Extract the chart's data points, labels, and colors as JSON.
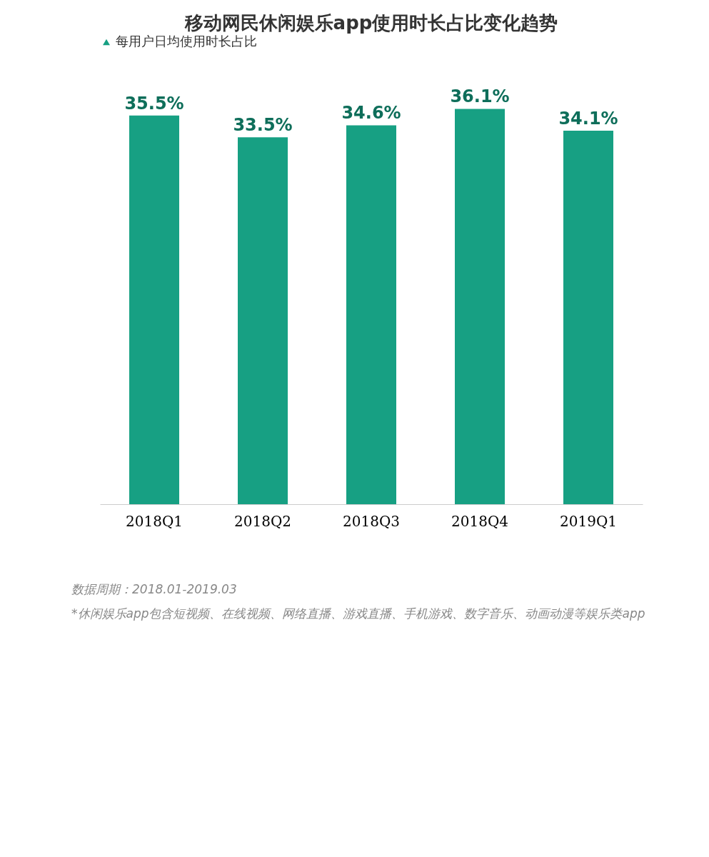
{
  "chart_data": {
    "type": "bar",
    "title": "移动网民休闲娱乐app使用时长占比变化趋势",
    "categories": [
      "2018Q1",
      "2018Q2",
      "2018Q3",
      "2018Q4",
      "2019Q1"
    ],
    "series": [
      {
        "name": "每用户日均使用时长占比",
        "color": "#17a083",
        "values": [
          35.5,
          33.5,
          34.6,
          36.1,
          34.1
        ],
        "value_labels": [
          "35.5%",
          "33.5%",
          "34.6%",
          "36.1%",
          "34.1%"
        ]
      }
    ],
    "legend": "top",
    "grid": false,
    "tick_labels": "x",
    "annotations": [
      "数据周期：2018.01-2019.03",
      "*休闲娱乐app包含短视频、在线视频、网络直播、游戏直播、手机游戏、数字音乐、动画动漫等娱乐类app"
    ]
  }
}
